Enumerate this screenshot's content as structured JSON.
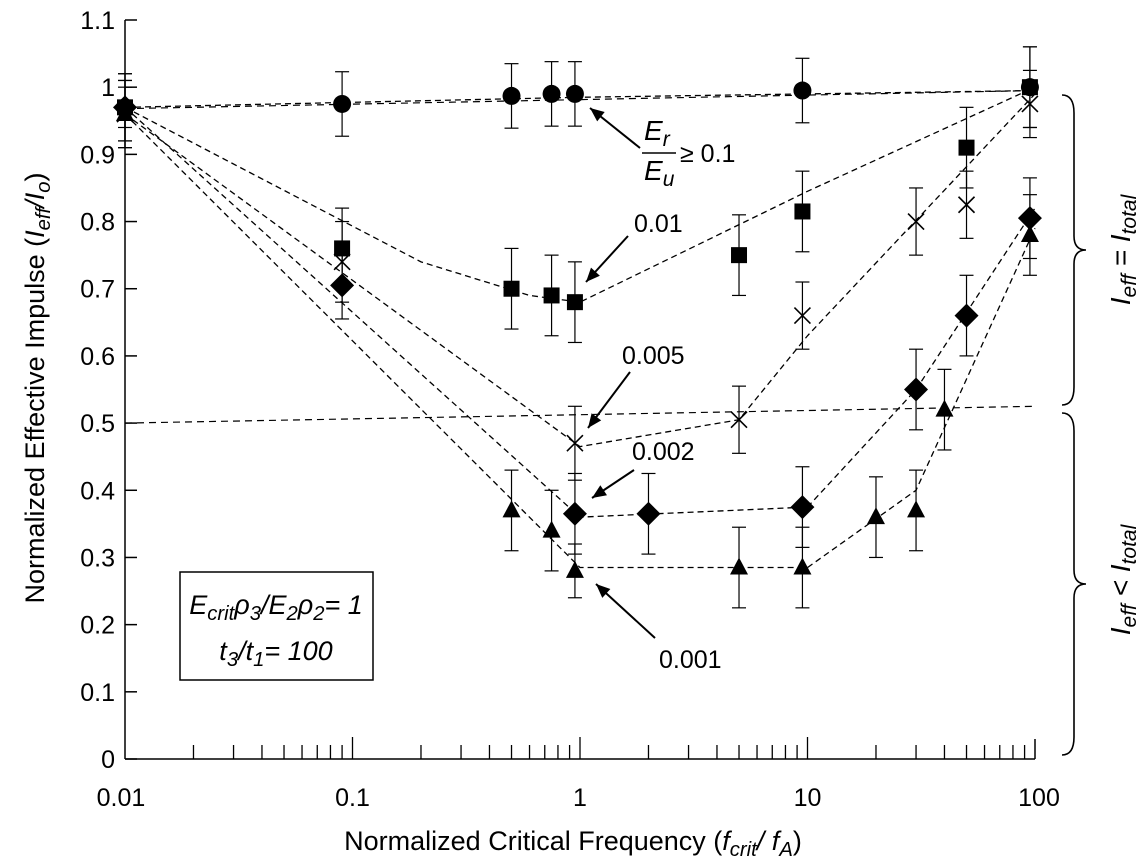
{
  "chart_data": {
    "type": "scatter",
    "x_scale": "log",
    "xlim": [
      0.01,
      100
    ],
    "ylim": [
      0,
      1.1
    ],
    "grid": false,
    "x_ticks": [
      "0.01",
      "0.1",
      "1",
      "10",
      "100"
    ],
    "y_ticks": [
      "0",
      "0.1",
      "0.2",
      "0.3",
      "0.4",
      "0.5",
      "0.6",
      "0.7",
      "0.8",
      "0.9",
      "1",
      "1.1"
    ],
    "ylabel": {
      "main": "Normalized Effective Impulse (",
      "i1": "I",
      "s1": "eff",
      "mid": "/",
      "i2": "I",
      "s2": "o",
      "end": ")"
    },
    "xlabel": {
      "main": "Normalized Critical Frequency (",
      "i1": "f",
      "s1": "crit",
      "mid": "/ ",
      "i2": "f",
      "s2": "A",
      "end": ")"
    },
    "series": [
      {
        "marker": "circle",
        "label": "≥ 0.1",
        "points": [
          {
            "x": 0.01,
            "y": 0.97,
            "err": 0.03
          },
          {
            "x": 0.09,
            "y": 0.975,
            "err": 0.048
          },
          {
            "x": 0.5,
            "y": 0.987,
            "err": 0.048
          },
          {
            "x": 0.75,
            "y": 0.99,
            "err": 0.048
          },
          {
            "x": 0.95,
            "y": 0.99,
            "err": 0.048
          },
          {
            "x": 9.5,
            "y": 0.995,
            "err": 0.048
          },
          {
            "x": 95,
            "y": 1.0,
            "err": 0.06
          }
        ],
        "fit": [
          [
            0.01,
            0.97
          ],
          [
            1,
            0.985
          ],
          [
            100,
            0.995
          ]
        ]
      },
      {
        "marker": "square",
        "label": "0.01",
        "points": [
          {
            "x": 0.01,
            "y": 0.97,
            "err": 0.05
          },
          {
            "x": 0.09,
            "y": 0.76,
            "err": 0.06
          },
          {
            "x": 0.5,
            "y": 0.7,
            "err": 0.06
          },
          {
            "x": 0.75,
            "y": 0.69,
            "err": 0.06
          },
          {
            "x": 0.95,
            "y": 0.68,
            "err": 0.06
          },
          {
            "x": 5,
            "y": 0.75,
            "err": 0.06
          },
          {
            "x": 9.5,
            "y": 0.815,
            "err": 0.06
          },
          {
            "x": 50,
            "y": 0.91,
            "err": 0.06
          },
          {
            "x": 95,
            "y": 1.0,
            "err": 0.06
          }
        ],
        "fit": [
          [
            0.01,
            0.97
          ],
          [
            0.2,
            0.74
          ],
          [
            0.6,
            0.69
          ],
          [
            1,
            0.68
          ],
          [
            10,
            0.845
          ],
          [
            100,
            1.0
          ]
        ]
      },
      {
        "marker": "cross",
        "label": "0.005",
        "points": [
          {
            "x": 0.01,
            "y": 0.96,
            "err": 0.05
          },
          {
            "x": 0.09,
            "y": 0.74,
            "err": 0.06
          },
          {
            "x": 0.95,
            "y": 0.47,
            "err": 0.055
          },
          {
            "x": 5,
            "y": 0.505,
            "err": 0.05
          },
          {
            "x": 9.5,
            "y": 0.66,
            "err": 0.05
          },
          {
            "x": 30,
            "y": 0.8,
            "err": 0.05
          },
          {
            "x": 50,
            "y": 0.825,
            "err": 0.05
          },
          {
            "x": 95,
            "y": 0.975,
            "err": 0.05
          }
        ],
        "fit": [
          [
            0.01,
            0.96
          ],
          [
            1,
            0.465
          ],
          [
            5,
            0.505
          ],
          [
            10,
            0.63
          ],
          [
            100,
            0.99
          ]
        ]
      },
      {
        "marker": "diamond",
        "label": "0.002",
        "points": [
          {
            "x": 0.01,
            "y": 0.97,
            "err": 0.05
          },
          {
            "x": 0.09,
            "y": 0.705,
            "err": 0.05
          },
          {
            "x": 0.95,
            "y": 0.365,
            "err": 0.06
          },
          {
            "x": 2,
            "y": 0.365,
            "err": 0.06
          },
          {
            "x": 9.5,
            "y": 0.375,
            "err": 0.06
          },
          {
            "x": 30,
            "y": 0.55,
            "err": 0.06
          },
          {
            "x": 50,
            "y": 0.66,
            "err": 0.06
          },
          {
            "x": 95,
            "y": 0.805,
            "err": 0.06
          }
        ],
        "fit": [
          [
            0.01,
            0.97
          ],
          [
            1,
            0.36
          ],
          [
            10,
            0.375
          ],
          [
            30,
            0.55
          ],
          [
            100,
            0.82
          ]
        ]
      },
      {
        "marker": "triangle",
        "label": "0.001",
        "points": [
          {
            "x": 0.01,
            "y": 0.96,
            "err": 0.05
          },
          {
            "x": 0.5,
            "y": 0.37,
            "err": 0.06
          },
          {
            "x": 0.75,
            "y": 0.34,
            "err": 0.06
          },
          {
            "x": 0.95,
            "y": 0.28,
            "err": 0.04
          },
          {
            "x": 5,
            "y": 0.285,
            "err": 0.06
          },
          {
            "x": 9.5,
            "y": 0.285,
            "err": 0.06
          },
          {
            "x": 20,
            "y": 0.36,
            "err": 0.06
          },
          {
            "x": 30,
            "y": 0.37,
            "err": 0.06
          },
          {
            "x": 40,
            "y": 0.52,
            "err": 0.06
          },
          {
            "x": 95,
            "y": 0.78,
            "err": 0.06
          }
        ],
        "fit": [
          [
            0.01,
            0.96
          ],
          [
            1,
            0.285
          ],
          [
            10,
            0.285
          ],
          [
            30,
            0.4
          ],
          [
            100,
            0.79
          ]
        ]
      }
    ],
    "threshold_lines": [
      [
        [
          0.01,
          0.968
        ],
        [
          100,
          0.995
        ]
      ],
      [
        [
          0.01,
          0.5
        ],
        [
          100,
          0.525
        ]
      ]
    ],
    "er_eu_annotation": {
      "num": "E",
      "num_sub": "r",
      "den": "E",
      "den_sub": "u",
      "suffix": "≥ 0.1"
    },
    "params_box": {
      "line1": {
        "a": "E",
        "a_sub": "crit",
        "b": "ρ",
        "b_sub": "3",
        "c": "/E",
        "c_sub": "2",
        "d": "ρ",
        "d_sub": "2",
        "end": "= 1"
      },
      "line2": {
        "a": "t",
        "a_sub": "3",
        "b": "/t",
        "b_sub": "1",
        "end": "= 100"
      }
    },
    "right_annotations": {
      "upper": {
        "a": "I",
        "a_sub": "eff",
        "mid": " = ",
        "b": "I",
        "b_sub": "total"
      },
      "lower": {
        "a": "I",
        "a_sub": "eff",
        "mid": " < ",
        "b": "I",
        "b_sub": "total"
      }
    }
  }
}
